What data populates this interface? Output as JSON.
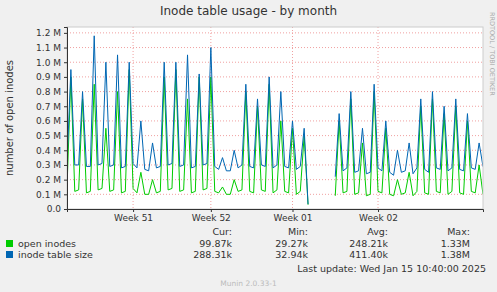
{
  "chart_data": {
    "type": "line",
    "title": "Inode table usage - by month",
    "y_label": "number of open inodes",
    "footer": "Last update: Wed Jan 15 10:40:00 2025",
    "credit": "Munin 2.0.33-1",
    "watermark": "RRDTOOL / TOBI OETIKER",
    "legend_columns": [
      "Cur:",
      "Min:",
      "Avg:",
      "Max:"
    ],
    "grid": true,
    "ylim": [
      0,
      1240000
    ],
    "yticks": [
      {
        "value": 0,
        "label": "0.0"
      },
      {
        "value": 100000,
        "label": "0.1 M"
      },
      {
        "value": 200000,
        "label": "0.2 M"
      },
      {
        "value": 300000,
        "label": "0.3 M"
      },
      {
        "value": 400000,
        "label": "0.4 M"
      },
      {
        "value": 500000,
        "label": "0.5 M"
      },
      {
        "value": 600000,
        "label": "0.6 M"
      },
      {
        "value": 700000,
        "label": "0.7 M"
      },
      {
        "value": 800000,
        "label": "0.8 M"
      },
      {
        "value": 900000,
        "label": "0.9 M"
      },
      {
        "value": 1000000,
        "label": "1.0 M"
      },
      {
        "value": 1100000,
        "label": "1.1 M"
      },
      {
        "value": 1200000,
        "label": "1.2 M"
      }
    ],
    "categories": [
      null,
      null,
      null,
      null,
      null,
      null,
      null,
      null,
      null,
      null,
      null,
      null,
      null,
      null,
      null,
      null,
      null,
      "Week 51",
      null,
      null,
      null,
      null,
      null,
      null,
      null,
      null,
      null,
      null,
      null,
      null,
      null,
      null,
      null,
      null,
      null,
      null,
      null,
      "Week 52",
      null,
      null,
      null,
      null,
      null,
      null,
      null,
      null,
      null,
      null,
      null,
      null,
      null,
      null,
      null,
      null,
      null,
      null,
      null,
      null,
      "Week 01",
      null,
      null,
      null,
      null,
      null,
      null,
      null,
      null,
      null,
      null,
      null,
      null,
      null,
      null,
      null,
      null,
      null,
      null,
      null,
      null,
      null,
      "Week 02",
      null,
      null,
      null,
      null,
      null,
      null,
      null,
      null,
      null,
      null,
      null,
      null,
      null,
      null,
      null,
      null,
      null,
      null,
      null,
      null,
      null,
      null,
      null,
      null,
      null,
      null,
      null
    ],
    "series": [
      {
        "name": "open inodes",
        "color": "#00cc00",
        "stats": [
          "99.87k",
          "29.27k",
          "248.21k",
          "1.33M"
        ],
        "values": [
          140000,
          900000,
          120000,
          130000,
          750000,
          110000,
          120000,
          850000,
          130000,
          140000,
          550000,
          120000,
          130000,
          800000,
          110000,
          120000,
          950000,
          140000,
          110000,
          250000,
          100000,
          100000,
          200000,
          110000,
          120000,
          900000,
          130000,
          140000,
          950000,
          120000,
          130000,
          750000,
          110000,
          120000,
          900000,
          130000,
          140000,
          900000,
          120000,
          110000,
          150000,
          100000,
          100000,
          200000,
          120000,
          130000,
          800000,
          120000,
          110000,
          700000,
          130000,
          120000,
          850000,
          110000,
          130000,
          600000,
          120000,
          110000,
          550000,
          100000,
          120000,
          500000,
          29270,
          null,
          null,
          null,
          null,
          null,
          null,
          90000,
          600000,
          110000,
          120000,
          750000,
          100000,
          110000,
          450000,
          90000,
          100000,
          800000,
          120000,
          110000,
          550000,
          100000,
          90000,
          200000,
          100000,
          110000,
          250000,
          90000,
          120000,
          700000,
          110000,
          100000,
          750000,
          120000,
          110000,
          650000,
          100000,
          120000,
          700000,
          110000,
          100000,
          600000,
          120000,
          110000,
          300000,
          99870
        ]
      },
      {
        "name": "inode table size",
        "color": "#0066b3",
        "stats": [
          "288.31k",
          "32.94k",
          "411.40k",
          "1.38M"
        ],
        "values": [
          310000,
          950000,
          300000,
          300000,
          800000,
          290000,
          290000,
          1180000,
          300000,
          310000,
          1000000,
          290000,
          300000,
          1050000,
          280000,
          290000,
          1000000,
          310000,
          280000,
          600000,
          270000,
          260000,
          450000,
          280000,
          290000,
          1000000,
          300000,
          310000,
          1000000,
          290000,
          300000,
          1050000,
          280000,
          290000,
          920000,
          300000,
          310000,
          1100000,
          290000,
          270000,
          350000,
          260000,
          260000,
          400000,
          280000,
          300000,
          850000,
          290000,
          280000,
          750000,
          300000,
          290000,
          900000,
          280000,
          300000,
          800000,
          290000,
          280000,
          600000,
          270000,
          290000,
          550000,
          32940,
          null,
          null,
          null,
          null,
          null,
          null,
          220000,
          650000,
          260000,
          280000,
          800000,
          250000,
          260000,
          550000,
          240000,
          250000,
          850000,
          280000,
          260000,
          600000,
          250000,
          230000,
          400000,
          250000,
          260000,
          450000,
          240000,
          280000,
          750000,
          270000,
          250000,
          800000,
          280000,
          270000,
          700000,
          260000,
          280000,
          750000,
          270000,
          260000,
          650000,
          280000,
          270000,
          450000,
          288310
        ]
      }
    ]
  }
}
